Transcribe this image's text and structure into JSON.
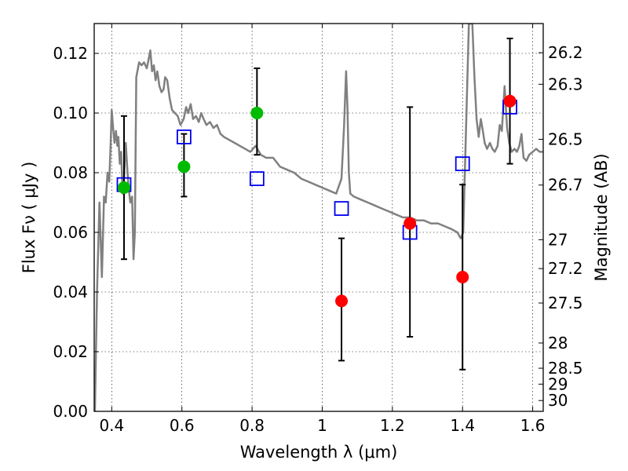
{
  "chart_data": {
    "type": "scatter",
    "title": "",
    "xlabel": "Wavelength  λ (μm)",
    "ylabel": "Flux  Fν  ( μJy )",
    "ylabel_right": "Magnitude (AB)",
    "xlim": [
      0.35,
      1.63
    ],
    "ylim": [
      0.0,
      0.13
    ],
    "grid": true,
    "x_ticks": [
      {
        "value": 0.4,
        "label": "0.4"
      },
      {
        "value": 0.6,
        "label": "0.6"
      },
      {
        "value": 0.8,
        "label": "0.8"
      },
      {
        "value": 1.0,
        "label": "1"
      },
      {
        "value": 1.2,
        "label": "1.2"
      },
      {
        "value": 1.4,
        "label": "1.4"
      },
      {
        "value": 1.6,
        "label": "1.6"
      }
    ],
    "y_ticks": [
      {
        "value": 0.0,
        "label": "0.00"
      },
      {
        "value": 0.02,
        "label": "0.02"
      },
      {
        "value": 0.04,
        "label": "0.04"
      },
      {
        "value": 0.06,
        "label": "0.06"
      },
      {
        "value": 0.08,
        "label": "0.08"
      },
      {
        "value": 0.1,
        "label": "0.10"
      },
      {
        "value": 0.12,
        "label": "0.12"
      }
    ],
    "mag_ticks": [
      {
        "mag": 26.2,
        "label": "26.2"
      },
      {
        "mag": 26.3,
        "label": "26.3"
      },
      {
        "mag": 26.5,
        "label": "26.5"
      },
      {
        "mag": 26.7,
        "label": "26.7"
      },
      {
        "mag": 27.0,
        "label": "27"
      },
      {
        "mag": 27.2,
        "label": "27.2"
      },
      {
        "mag": 27.5,
        "label": "27.5"
      },
      {
        "mag": 28.0,
        "label": "28"
      },
      {
        "mag": 28.5,
        "label": "28.5"
      },
      {
        "mag": 29.0,
        "label": "29"
      },
      {
        "mag": 30.0,
        "label": "30"
      }
    ],
    "series": [
      {
        "kind": "errorbar_points",
        "color": "#00bb00",
        "points": [
          {
            "x": 0.435,
            "y": 0.075,
            "ylo": 0.051,
            "yhi": 0.099
          },
          {
            "x": 0.606,
            "y": 0.082,
            "ylo": 0.072,
            "yhi": 0.093
          },
          {
            "x": 0.814,
            "y": 0.1,
            "ylo": 0.086,
            "yhi": 0.115
          }
        ]
      },
      {
        "kind": "errorbar_points",
        "color": "#ff0000",
        "points": [
          {
            "x": 1.055,
            "y": 0.037,
            "ylo": 0.017,
            "yhi": 0.058
          },
          {
            "x": 1.25,
            "y": 0.063,
            "ylo": 0.025,
            "yhi": 0.102
          },
          {
            "x": 1.4,
            "y": 0.045,
            "ylo": 0.014,
            "yhi": 0.076
          },
          {
            "x": 1.535,
            "y": 0.104,
            "ylo": 0.083,
            "yhi": 0.125
          }
        ]
      },
      {
        "kind": "model_photometry",
        "color": "#0000ee",
        "points": [
          {
            "x": 0.435,
            "y": 0.076
          },
          {
            "x": 0.606,
            "y": 0.092
          },
          {
            "x": 0.814,
            "y": 0.078
          },
          {
            "x": 1.055,
            "y": 0.068
          },
          {
            "x": 1.25,
            "y": 0.06
          },
          {
            "x": 1.4,
            "y": 0.083
          },
          {
            "x": 1.535,
            "y": 0.102
          }
        ]
      },
      {
        "kind": "sed_line",
        "color": "#808080",
        "points": [
          [
            0.352,
            0.0
          ],
          [
            0.358,
            0.04
          ],
          [
            0.365,
            0.07
          ],
          [
            0.372,
            0.045
          ],
          [
            0.378,
            0.072
          ],
          [
            0.383,
            0.07
          ],
          [
            0.388,
            0.08
          ],
          [
            0.393,
            0.077
          ],
          [
            0.397,
            0.09
          ],
          [
            0.4,
            0.101
          ],
          [
            0.404,
            0.095
          ],
          [
            0.408,
            0.09
          ],
          [
            0.412,
            0.094
          ],
          [
            0.416,
            0.089
          ],
          [
            0.419,
            0.092
          ],
          [
            0.423,
            0.083
          ],
          [
            0.427,
            0.087
          ],
          [
            0.431,
            0.073
          ],
          [
            0.435,
            0.078
          ],
          [
            0.44,
            0.09
          ],
          [
            0.444,
            0.082
          ],
          [
            0.448,
            0.075
          ],
          [
            0.453,
            0.07
          ],
          [
            0.458,
            0.072
          ],
          [
            0.462,
            0.051
          ],
          [
            0.466,
            0.06
          ],
          [
            0.47,
            0.112
          ],
          [
            0.478,
            0.117
          ],
          [
            0.485,
            0.116
          ],
          [
            0.492,
            0.117
          ],
          [
            0.5,
            0.115
          ],
          [
            0.505,
            0.118
          ],
          [
            0.51,
            0.121
          ],
          [
            0.515,
            0.114
          ],
          [
            0.52,
            0.116
          ],
          [
            0.525,
            0.111
          ],
          [
            0.53,
            0.114
          ],
          [
            0.536,
            0.109
          ],
          [
            0.542,
            0.107
          ],
          [
            0.548,
            0.108
          ],
          [
            0.552,
            0.112
          ],
          [
            0.558,
            0.111
          ],
          [
            0.565,
            0.105
          ],
          [
            0.572,
            0.101
          ],
          [
            0.58,
            0.1
          ],
          [
            0.588,
            0.099
          ],
          [
            0.596,
            0.096
          ],
          [
            0.605,
            0.098
          ],
          [
            0.612,
            0.102
          ],
          [
            0.618,
            0.1
          ],
          [
            0.625,
            0.103
          ],
          [
            0.632,
            0.098
          ],
          [
            0.64,
            0.099
          ],
          [
            0.648,
            0.097
          ],
          [
            0.655,
            0.1
          ],
          [
            0.662,
            0.098
          ],
          [
            0.67,
            0.096
          ],
          [
            0.68,
            0.097
          ],
          [
            0.69,
            0.095
          ],
          [
            0.7,
            0.096
          ],
          [
            0.71,
            0.093
          ],
          [
            0.72,
            0.092
          ],
          [
            0.735,
            0.091
          ],
          [
            0.75,
            0.09
          ],
          [
            0.765,
            0.089
          ],
          [
            0.78,
            0.088
          ],
          [
            0.795,
            0.087
          ],
          [
            0.81,
            0.089
          ],
          [
            0.825,
            0.086
          ],
          [
            0.84,
            0.085
          ],
          [
            0.86,
            0.085
          ],
          [
            0.88,
            0.082
          ],
          [
            0.9,
            0.081
          ],
          [
            0.92,
            0.08
          ],
          [
            0.94,
            0.078
          ],
          [
            0.96,
            0.077
          ],
          [
            0.98,
            0.076
          ],
          [
            1.0,
            0.075
          ],
          [
            1.02,
            0.074
          ],
          [
            1.04,
            0.073
          ],
          [
            1.055,
            0.078
          ],
          [
            1.062,
            0.095
          ],
          [
            1.068,
            0.114
          ],
          [
            1.072,
            0.102
          ],
          [
            1.076,
            0.08
          ],
          [
            1.08,
            0.073
          ],
          [
            1.09,
            0.072
          ],
          [
            1.11,
            0.071
          ],
          [
            1.13,
            0.07
          ],
          [
            1.15,
            0.069
          ],
          [
            1.17,
            0.068
          ],
          [
            1.19,
            0.067
          ],
          [
            1.21,
            0.066
          ],
          [
            1.23,
            0.065
          ],
          [
            1.25,
            0.065
          ],
          [
            1.27,
            0.064
          ],
          [
            1.29,
            0.064
          ],
          [
            1.31,
            0.063
          ],
          [
            1.33,
            0.063
          ],
          [
            1.35,
            0.062
          ],
          [
            1.37,
            0.061
          ],
          [
            1.385,
            0.06
          ],
          [
            1.395,
            0.058
          ],
          [
            1.402,
            0.06
          ],
          [
            1.41,
            0.095
          ],
          [
            1.418,
            0.13
          ],
          [
            1.428,
            0.13
          ],
          [
            1.434,
            0.112
          ],
          [
            1.44,
            0.098
          ],
          [
            1.446,
            0.092
          ],
          [
            1.452,
            0.098
          ],
          [
            1.458,
            0.094
          ],
          [
            1.463,
            0.09
          ],
          [
            1.47,
            0.088
          ],
          [
            1.478,
            0.09
          ],
          [
            1.485,
            0.088
          ],
          [
            1.492,
            0.087
          ],
          [
            1.5,
            0.089
          ],
          [
            1.506,
            0.096
          ],
          [
            1.512,
            0.094
          ],
          [
            1.52,
            0.109
          ],
          [
            1.527,
            0.095
          ],
          [
            1.533,
            0.09
          ],
          [
            1.54,
            0.087
          ],
          [
            1.548,
            0.088
          ],
          [
            1.555,
            0.087
          ],
          [
            1.562,
            0.089
          ],
          [
            1.568,
            0.093
          ],
          [
            1.574,
            0.085
          ],
          [
            1.582,
            0.084
          ],
          [
            1.59,
            0.086
          ],
          [
            1.6,
            0.087
          ],
          [
            1.61,
            0.088
          ],
          [
            1.62,
            0.087
          ],
          [
            1.63,
            0.087
          ]
        ]
      }
    ]
  }
}
